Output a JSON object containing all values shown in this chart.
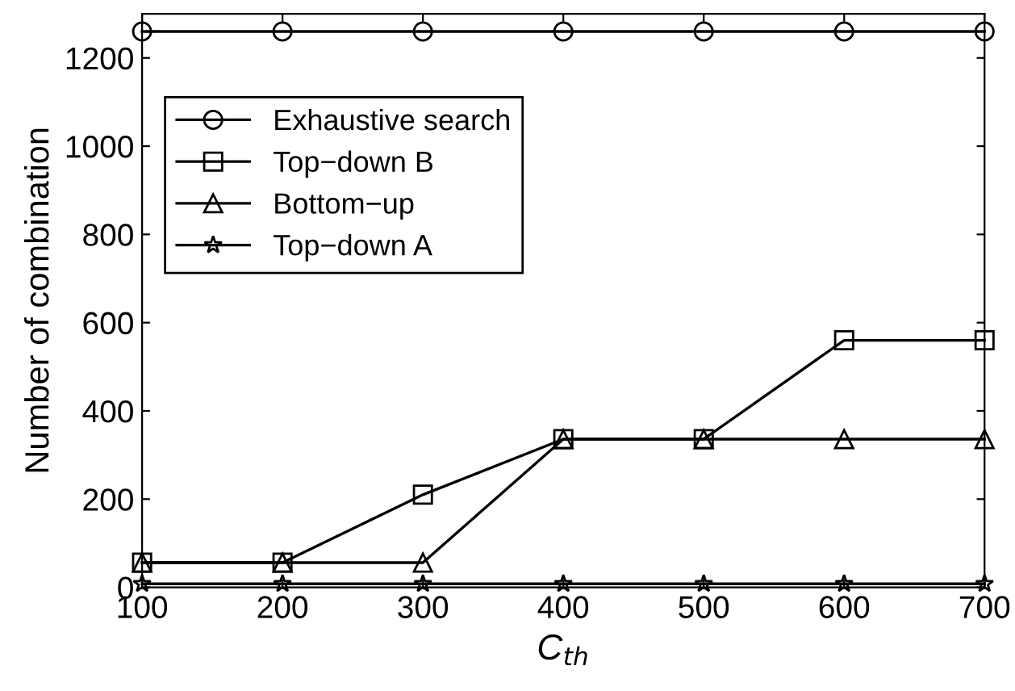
{
  "chart_data": {
    "type": "line",
    "xlabel": "C$_{th}$",
    "ylabel": "Number of combination",
    "x": [
      100,
      200,
      300,
      400,
      500,
      600,
      700
    ],
    "series": [
      {
        "name": "Exhaustive search",
        "color": "#000000",
        "marker": "circle",
        "values": [
          1260,
          1260,
          1260,
          1260,
          1260,
          1260,
          1260
        ]
      },
      {
        "name": "Top−down B",
        "color": "#000000",
        "marker": "square",
        "values": [
          56,
          56,
          210,
          336,
          336,
          560,
          560
        ]
      },
      {
        "name": "Bottom−up",
        "color": "#000000",
        "marker": "triangle",
        "values": [
          56,
          56,
          56,
          336,
          336,
          336,
          336
        ]
      },
      {
        "name": "Top−down A",
        "color": "#000000",
        "marker": "star",
        "values": [
          8,
          8,
          8,
          8,
          8,
          8,
          8
        ]
      }
    ],
    "xlim": [
      100,
      700
    ],
    "xticks": [
      100,
      200,
      300,
      400,
      500,
      600,
      700
    ],
    "ylim": [
      0,
      1300
    ],
    "yticks": [
      0,
      200,
      400,
      600,
      800,
      1000,
      1200
    ],
    "grid": false,
    "legend": "top left",
    "line_style": "solid"
  }
}
